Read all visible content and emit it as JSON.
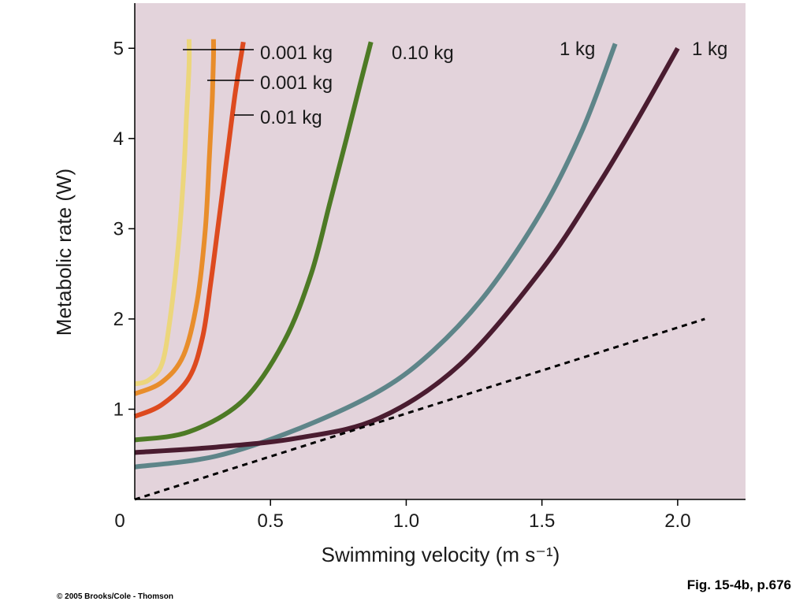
{
  "chart_data": {
    "type": "line",
    "xlabel": "Swimming velocity (m s⁻¹)",
    "ylabel": "Metabolic rate (W)",
    "xlim": [
      0,
      2.25
    ],
    "ylim": [
      0,
      5.5
    ],
    "x_ticks": [
      0,
      0.5,
      1.0,
      1.5,
      2.0
    ],
    "x_tick_labels": [
      "0",
      "0.5",
      "1.0",
      "1.5",
      "2.0"
    ],
    "y_ticks": [
      1,
      2,
      3,
      4,
      5
    ],
    "y_tick_labels": [
      "1",
      "2",
      "3",
      "4",
      "5"
    ],
    "plot_background": "#e3d3db",
    "grid": false,
    "legend": "none",
    "series": [
      {
        "name": "0.001 kg",
        "color": "#ecd67c",
        "x": [
          0,
          0.05,
          0.1,
          0.13,
          0.16,
          0.18,
          0.19,
          0.2,
          0.2
        ],
        "y": [
          1.28,
          1.32,
          1.5,
          2.0,
          2.8,
          3.6,
          4.2,
          4.8,
          5.1
        ]
      },
      {
        "name": "0.001 kg",
        "color": "#e88d2b",
        "x": [
          0,
          0.1,
          0.18,
          0.23,
          0.26,
          0.275,
          0.285,
          0.29,
          0.29
        ],
        "y": [
          1.17,
          1.3,
          1.6,
          2.2,
          3.0,
          3.8,
          4.4,
          4.9,
          5.1
        ]
      },
      {
        "name": "0.01 kg",
        "color": "#dd4a1f",
        "x": [
          0,
          0.1,
          0.2,
          0.25,
          0.28,
          0.31,
          0.34,
          0.37,
          0.4
        ],
        "y": [
          0.92,
          1.05,
          1.35,
          1.8,
          2.4,
          3.1,
          3.8,
          4.5,
          5.07
        ]
      },
      {
        "name": "0.10 kg",
        "color": "#4d7a25",
        "x": [
          0,
          0.2,
          0.4,
          0.55,
          0.65,
          0.72,
          0.78,
          0.83,
          0.87
        ],
        "y": [
          0.66,
          0.75,
          1.1,
          1.75,
          2.5,
          3.3,
          4.0,
          4.6,
          5.07
        ]
      },
      {
        "name": "1 kg",
        "color": "#5e8589",
        "x": [
          0,
          0.3,
          0.6,
          0.9,
          1.1,
          1.3,
          1.5,
          1.65,
          1.77
        ],
        "y": [
          0.36,
          0.48,
          0.78,
          1.2,
          1.65,
          2.3,
          3.2,
          4.1,
          5.05
        ]
      },
      {
        "name": "1 kg",
        "color": "#4a1c30",
        "x": [
          0,
          0.3,
          0.6,
          0.9,
          1.2,
          1.5,
          1.7,
          1.85,
          2.0
        ],
        "y": [
          0.52,
          0.58,
          0.68,
          0.9,
          1.5,
          2.55,
          3.45,
          4.2,
          5.0
        ]
      }
    ],
    "reference_line": {
      "style": "dashed",
      "color": "#000000",
      "x": [
        0,
        2.1
      ],
      "y": [
        0,
        2.0
      ]
    }
  },
  "figure": {
    "caption": "Fig. 15-4b, p.676",
    "copyright": "© 2005 Brooks/Cole - Thomson"
  }
}
